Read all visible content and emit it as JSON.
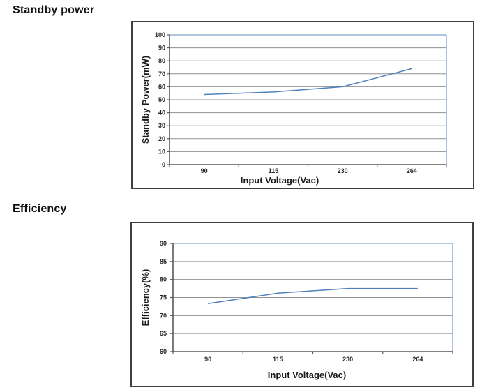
{
  "page": {
    "background": "#ffffff"
  },
  "sections": [
    {
      "heading": "Standby power"
    },
    {
      "heading": "Efficiency"
    }
  ],
  "chart_data": [
    {
      "type": "line",
      "name": "standby-power-chart",
      "title": "Standby power",
      "categories": [
        "90",
        "115",
        "230",
        "264"
      ],
      "values": [
        54,
        56,
        60,
        74
      ],
      "xlabel": "Input Voltage(Vac)",
      "ylabel": "Standby Power(mW)",
      "ylim": [
        0,
        100
      ],
      "ytick_step": 10,
      "grid": true,
      "legend": "none",
      "colors": {
        "series_line": "#4f81bd",
        "plot_border": "#95b3d7",
        "axis": "#595959",
        "grid": "#909090",
        "tick_label": "#262626"
      }
    },
    {
      "type": "line",
      "name": "efficiency-chart",
      "title": "Efficiency",
      "categories": [
        "90",
        "115",
        "230",
        "264"
      ],
      "values": [
        73.3,
        76.2,
        77.5,
        77.5
      ],
      "xlabel": "Input Voltage(Vac)",
      "ylabel": "Efficiency(%)",
      "ylim": [
        60,
        90
      ],
      "ytick_step": 5,
      "grid": true,
      "legend": "none",
      "colors": {
        "series_line": "#4f81bd",
        "plot_border": "#95b3d7",
        "axis": "#595959",
        "grid": "#909090",
        "tick_label": "#262626"
      }
    }
  ]
}
